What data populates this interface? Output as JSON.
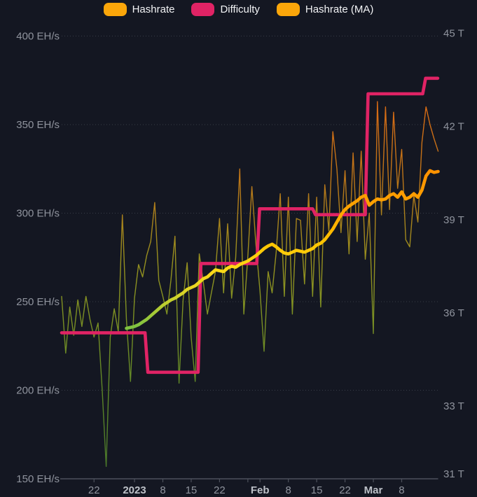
{
  "legend": {
    "items": [
      {
        "label": "Hashrate",
        "color": "#fba60a"
      },
      {
        "label": "Difficulty",
        "color": "#e02365"
      },
      {
        "label": "Hashrate (MA)",
        "color": "#fba60a"
      }
    ]
  },
  "chart_data": {
    "type": "line",
    "title": "",
    "x_axis": {
      "unit": "date",
      "ticks": [
        {
          "day": 8,
          "label": "22",
          "bold": false
        },
        {
          "day": 18,
          "label": "2023",
          "bold": true
        },
        {
          "day": 25,
          "label": "8",
          "bold": false
        },
        {
          "day": 32,
          "label": "15",
          "bold": false
        },
        {
          "day": 39,
          "label": "22",
          "bold": false
        },
        {
          "day": 46,
          "label": "",
          "bold": false
        },
        {
          "day": 49,
          "label": "Feb",
          "bold": true
        },
        {
          "day": 56,
          "label": "8",
          "bold": false
        },
        {
          "day": 63,
          "label": "15",
          "bold": false
        },
        {
          "day": 70,
          "label": "22",
          "bold": false
        },
        {
          "day": 77,
          "label": "Mar",
          "bold": true
        },
        {
          "day": 84,
          "label": "8",
          "bold": false
        }
      ]
    },
    "left_axis": {
      "unit": "EH/s",
      "min": 150,
      "max": 400,
      "ticks": [
        {
          "v": 150,
          "label": "150 EH/s"
        },
        {
          "v": 200,
          "label": "200 EH/s"
        },
        {
          "v": 250,
          "label": "250 EH/s"
        },
        {
          "v": 300,
          "label": "300 EH/s"
        },
        {
          "v": 350,
          "label": "350 EH/s"
        },
        {
          "v": 400,
          "label": "400 EH/s"
        }
      ]
    },
    "right_axis": {
      "unit": "T",
      "ticks": [
        {
          "v": 31,
          "label": "31 T",
          "clamp_bottom": true
        },
        {
          "v": 33,
          "label": "33 T",
          "clamp_bottom": false
        },
        {
          "v": 36,
          "label": "36 T",
          "clamp_bottom": false
        },
        {
          "v": 39,
          "label": "39 T",
          "clamp_bottom": false
        },
        {
          "v": 42,
          "label": "42 T",
          "clamp_bottom": false
        },
        {
          "v": 45,
          "label": "45 T",
          "clamp_bottom": false
        }
      ]
    },
    "series": [
      {
        "name": "Hashrate",
        "axis": "left",
        "style": "thin",
        "start_day": 0,
        "step_days": 1,
        "values": [
          253,
          221,
          247,
          231,
          251,
          236,
          253,
          240,
          230,
          238,
          201,
          157,
          230,
          246,
          233,
          299,
          240,
          205,
          252,
          271,
          264,
          276,
          284,
          306,
          262,
          253,
          243,
          262,
          287,
          204,
          251,
          272,
          230,
          205,
          277,
          261,
          243,
          255,
          267,
          297,
          255,
          294,
          252,
          275,
          325,
          243,
          276,
          315,
          282,
          256,
          222,
          267,
          255,
          278,
          311,
          253,
          309,
          243,
          297,
          296,
          260,
          311,
          253,
          309,
          247,
          316,
          290,
          346,
          325,
          289,
          324,
          277,
          334,
          284,
          335,
          274,
          300,
          232,
          363,
          299,
          360,
          302,
          357,
          314,
          336,
          285,
          281,
          310,
          295,
          340,
          360,
          350,
          342,
          335
        ]
      },
      {
        "name": "Hashrate (MA)",
        "axis": "left",
        "style": "thick",
        "start_day": 16,
        "step_days": 1,
        "values": [
          235,
          235.5,
          236,
          237,
          238.5,
          240,
          242,
          244,
          246,
          248,
          249.5,
          251,
          252,
          253.5,
          255,
          257,
          258,
          259,
          261,
          263,
          264,
          266,
          268,
          267.5,
          267,
          269,
          270,
          269.5,
          271,
          272,
          273,
          274.5,
          276,
          278,
          280,
          281.5,
          282.5,
          281,
          279,
          277.5,
          277,
          278,
          279,
          278.5,
          278,
          279,
          280,
          282,
          283,
          285,
          288,
          291,
          295,
          299,
          302,
          304,
          305.5,
          307,
          309,
          310,
          304.5,
          306.5,
          308,
          307.5,
          308,
          310,
          311,
          309,
          312,
          308,
          309,
          311,
          309,
          313,
          321,
          324,
          323,
          323.5
        ]
      },
      {
        "name": "Difficulty",
        "axis": "right",
        "style": "step",
        "points": [
          [
            0,
            35.36
          ],
          [
            20.6,
            35.36
          ],
          [
            21.3,
            34.09
          ],
          [
            33.7,
            34.09
          ],
          [
            34.4,
            37.59
          ],
          [
            48.2,
            37.59
          ],
          [
            48.9,
            39.35
          ],
          [
            62,
            39.35
          ],
          [
            62.7,
            39.16
          ],
          [
            75,
            39.16
          ],
          [
            75.7,
            43.05
          ],
          [
            89.2,
            43.05
          ],
          [
            89.9,
            43.55
          ],
          [
            92.9,
            43.55
          ]
        ]
      }
    ],
    "colors": {
      "background": "#141722",
      "grid": "#3f434e",
      "axis_line": "#4d515c",
      "axis_text": "#8f939d",
      "axis_text_bold": "#bcc0c7",
      "difficulty_line": "#e02365",
      "thin_gradient": [
        [
          0,
          "#e66f12"
        ],
        [
          0.16,
          "#d96a14"
        ],
        [
          0.32,
          "#bd7418"
        ],
        [
          0.42,
          "#a8821c"
        ],
        [
          0.51,
          "#97901f"
        ],
        [
          0.6,
          "#839122"
        ],
        [
          0.7,
          "#6f8c25"
        ],
        [
          0.81,
          "#5c8628"
        ],
        [
          1,
          "#47762a"
        ]
      ],
      "ma_gradient": [
        [
          0,
          "#ff8000"
        ],
        [
          0.31,
          "#ff9100"
        ],
        [
          0.4,
          "#ffa400"
        ],
        [
          0.47,
          "#ffc300"
        ],
        [
          0.53,
          "#ffd916"
        ],
        [
          0.57,
          "#e8d722"
        ],
        [
          0.62,
          "#b0cc33"
        ],
        [
          0.66,
          "#7fc241"
        ],
        [
          1,
          "#58a932"
        ]
      ]
    },
    "layout_hints": {
      "legend_position": "top-center",
      "grid": "horizontal-dotted",
      "x_range_days": 93
    }
  }
}
